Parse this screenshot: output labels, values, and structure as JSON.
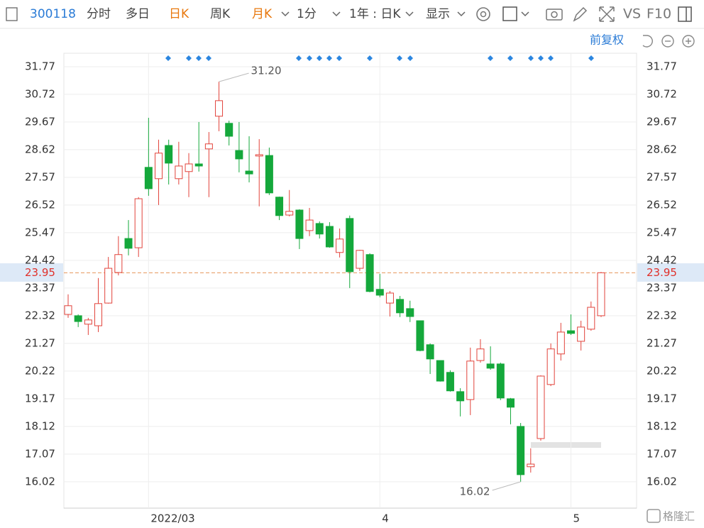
{
  "toolbar": {
    "code": "300118",
    "tabs": [
      "分时",
      "多日",
      "日K",
      "周K",
      "月K"
    ],
    "period": "1分",
    "range": "1年 : 日K",
    "display": "显示",
    "vs": "VS",
    "f10": "F10"
  },
  "adjust": "前复权",
  "watermark": "格隆汇",
  "chart_data": {
    "type": "candlestick",
    "categories": [
      null,
      null,
      null,
      null,
      null,
      null,
      null,
      null,
      "2022/03",
      null,
      null,
      null,
      null,
      null,
      null,
      null,
      null,
      null,
      null,
      null,
      null,
      null,
      null,
      null,
      null,
      null,
      null,
      null,
      null,
      null,
      null,
      "4",
      null,
      null,
      null,
      null,
      null,
      null,
      null,
      null,
      null,
      null,
      null,
      null,
      null,
      null,
      null,
      null,
      null,
      null,
      "5",
      null,
      null,
      null
    ],
    "series": {
      "up_color": "#e2433b",
      "down_color": "#14a83b",
      "open": [
        22.37,
        22.32,
        22.0,
        21.94,
        22.8,
        23.96,
        25.25,
        24.9,
        27.95,
        27.52,
        28.78,
        27.52,
        27.79,
        28.08,
        28.65,
        29.89,
        29.62,
        28.59,
        27.81,
        28.38,
        28.4,
        26.82,
        26.14,
        26.33,
        25.55,
        25.82,
        25.71,
        24.72,
        26.01,
        24.12,
        24.64,
        23.32,
        22.8,
        22.94,
        22.59,
        22.13,
        21.22,
        20.62,
        20.17,
        19.44,
        19.14,
        20.62,
        20.49,
        20.49,
        19.17,
        18.12,
        16.59,
        17.66,
        19.71,
        20.87,
        21.75,
        21.35,
        21.81,
        22.32
      ],
      "high": [
        23.13,
        22.37,
        22.24,
        23.75,
        24.55,
        25.34,
        25.95,
        26.82,
        29.83,
        29.0,
        29.0,
        28.92,
        28.49,
        29.67,
        29.29,
        31.2,
        29.72,
        29.67,
        29.13,
        29.02,
        28.7,
        26.84,
        27.09,
        26.36,
        26.41,
        25.9,
        25.87,
        25.63,
        26.12,
        24.82,
        24.69,
        23.91,
        23.26,
        23.07,
        22.89,
        22.13,
        21.27,
        20.62,
        20.25,
        19.57,
        21.11,
        21.43,
        21.16,
        20.54,
        19.2,
        18.25,
        17.29,
        20.06,
        21.27,
        22.05,
        22.37,
        22.13,
        22.86,
        23.98
      ],
      "low": [
        22.24,
        21.89,
        21.59,
        21.7,
        22.78,
        23.85,
        24.61,
        24.55,
        26.87,
        26.52,
        27.3,
        27.3,
        26.82,
        27.79,
        26.82,
        29.32,
        28.78,
        27.76,
        27.38,
        26.47,
        26.9,
        25.95,
        26.09,
        24.85,
        25.34,
        25.25,
        24.9,
        24.53,
        23.37,
        24.02,
        23.21,
        23.02,
        22.29,
        22.27,
        22.08,
        20.97,
        20.11,
        19.82,
        19.44,
        18.5,
        18.55,
        20.54,
        20.27,
        19.12,
        18.2,
        16.02,
        16.37,
        17.58,
        19.65,
        20.62,
        21.59,
        21.0,
        21.75,
        22.27
      ],
      "close": [
        22.7,
        22.1,
        22.16,
        22.78,
        24.12,
        24.64,
        24.88,
        26.76,
        27.14,
        28.49,
        28.11,
        28.0,
        28.08,
        28.0,
        28.84,
        30.48,
        29.13,
        28.27,
        27.7,
        28.43,
        26.98,
        26.12,
        26.28,
        25.25,
        25.95,
        25.42,
        24.93,
        25.23,
        23.99,
        24.8,
        23.24,
        23.1,
        23.18,
        22.43,
        22.29,
        21.0,
        20.68,
        19.84,
        19.47,
        19.09,
        20.6,
        21.06,
        20.33,
        19.2,
        18.85,
        16.29,
        16.69,
        20.03,
        21.06,
        21.7,
        21.65,
        21.89,
        22.64,
        23.95
      ]
    },
    "ylim": [
      15.02,
      32.28
    ],
    "yticks": [
      31.77,
      30.72,
      29.67,
      28.62,
      27.57,
      26.52,
      25.47,
      24.42,
      23.37,
      22.32,
      21.27,
      20.22,
      19.17,
      18.12,
      17.07,
      16.02
    ],
    "grid": true,
    "current_price": 23.95,
    "high_label": {
      "value": 31.2,
      "label": "31.20"
    },
    "low_label": 16.02
  }
}
